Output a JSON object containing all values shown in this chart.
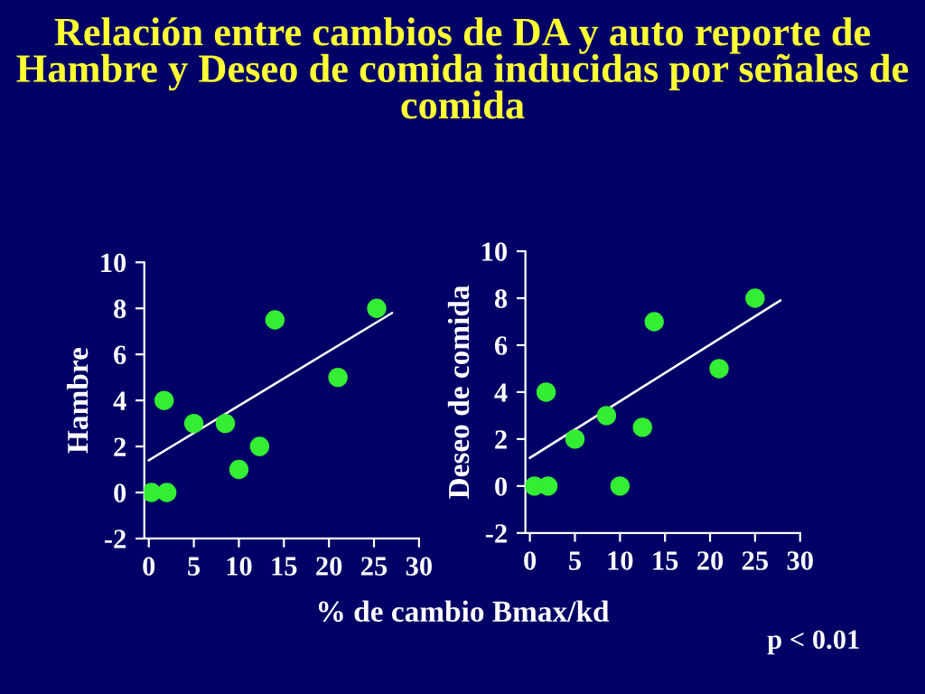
{
  "chart_data": [
    {
      "type": "scatter",
      "title": "Relación entre cambios de DA y auto reporte de Hambre y Deseo de comida inducidas por señales de comida",
      "ylabel": "Hambre",
      "xlabel": "% de cambio Bmax/kd",
      "xlim": [
        -0.5,
        30
      ],
      "xticks": [
        0,
        5,
        10,
        15,
        20,
        25,
        30
      ],
      "ylim": [
        -2,
        10
      ],
      "yticks": [
        -2,
        0,
        2,
        4,
        6,
        8,
        10
      ],
      "grid": false,
      "series": [
        {
          "color": "#33ee33",
          "marker": "circle",
          "x": [
            0.3,
            2,
            1.7,
            5,
            8.5,
            10,
            12.3,
            14,
            21,
            25.3
          ],
          "values": [
            0,
            0,
            4,
            3,
            3,
            1,
            2,
            7.5,
            5,
            8
          ]
        },
        {
          "type": "line",
          "color": "#ffffff",
          "x": [
            0,
            27
          ],
          "values": [
            1.4,
            7.8
          ]
        }
      ]
    },
    {
      "type": "scatter",
      "ylabel": "Deseo de comida",
      "xlim": [
        -0.5,
        30
      ],
      "xticks": [
        0,
        5,
        10,
        15,
        20,
        25,
        30
      ],
      "ylim": [
        -2,
        10
      ],
      "yticks": [
        -2,
        0,
        2,
        4,
        6,
        8,
        10
      ],
      "grid": false,
      "annotations": [
        "p < 0.01"
      ],
      "series": [
        {
          "color": "#33ee33",
          "marker": "circle",
          "x": [
            0.5,
            2,
            1.8,
            5,
            8.5,
            10,
            12.5,
            13.8,
            21,
            25
          ],
          "values": [
            0,
            0,
            4,
            2,
            3,
            0,
            2.5,
            7,
            5,
            8
          ]
        },
        {
          "type": "line",
          "color": "#ffffff",
          "x": [
            0,
            27.8
          ],
          "values": [
            1.2,
            7.9
          ]
        }
      ]
    }
  ]
}
